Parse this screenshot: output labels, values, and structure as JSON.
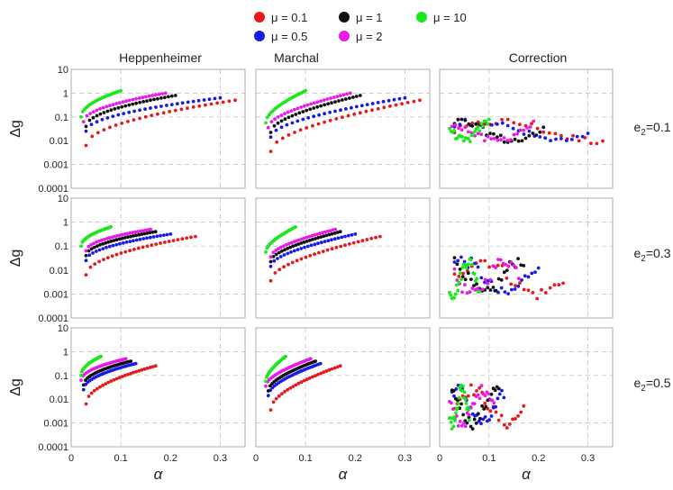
{
  "chart_data": {
    "type": "scatter",
    "legend": {
      "placement": "top-center",
      "entries": [
        {
          "label": "μ = 0.1",
          "color": "#e8191a"
        },
        {
          "label": "μ = 0.5",
          "color": "#1a1ae8"
        },
        {
          "label": "μ = 1",
          "color": "#111111"
        },
        {
          "label": "μ = 2",
          "color": "#e81ae8"
        },
        {
          "label": "μ = 10",
          "color": "#1ae81a"
        }
      ]
    },
    "column_titles": [
      "Heppenheimer",
      "Marchal",
      "Correction"
    ],
    "row_labels": [
      {
        "prefix": "e",
        "sub": "2",
        "suffix": "=0.1"
      },
      {
        "prefix": "e",
        "sub": "2",
        "suffix": "=0.3"
      },
      {
        "prefix": "e",
        "sub": "2",
        "suffix": "=0.5"
      }
    ],
    "xlabel": "α",
    "ylabel": "Δg",
    "xlim": [
      0,
      0.35
    ],
    "ylim": [
      0.0001,
      10
    ],
    "yscale": "log",
    "xticks": [
      "0",
      "0.1",
      "0.2",
      "0.3"
    ],
    "yticks": [
      "0.0001",
      "0.001",
      "0.01",
      "0.1",
      "1",
      "10"
    ],
    "grid": "dashed",
    "panels_note": "3x3 grid: rows e2=0.1,0.3,0.5; columns Heppenheimer, Marchal, Correction; each panel has one series per mu",
    "series_colors": [
      "#e8191a",
      "#1a1ae8",
      "#111111",
      "#e81ae8",
      "#1ae81a"
    ]
  }
}
